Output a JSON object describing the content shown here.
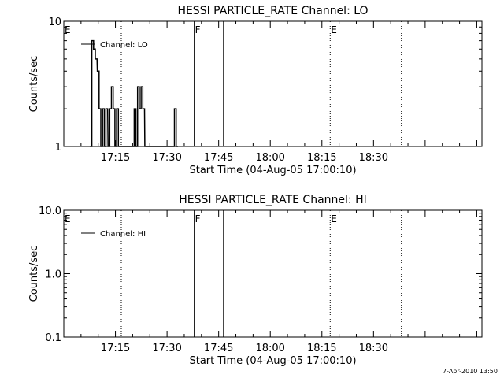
{
  "footer_text": "7-Apr-2010 13:50",
  "chart_data": [
    {
      "type": "line",
      "title": "HESSI PARTICLE_RATE Channel: LO",
      "xlabel": "Start Time (04-Aug-05 17:00:10)",
      "ylabel": "Counts/sec",
      "y_scale": "log",
      "ylim": [
        1,
        10
      ],
      "y_ticks": [
        {
          "value": 1,
          "label": "1"
        },
        {
          "value": 10,
          "label": "10"
        }
      ],
      "xlim_minutes": [
        0,
        121.5
      ],
      "x_ticks": [
        {
          "minutes": 15,
          "label": "17:15"
        },
        {
          "minutes": 30,
          "label": "17:30"
        },
        {
          "minutes": 45,
          "label": "17:45"
        },
        {
          "minutes": 60,
          "label": "18:00"
        },
        {
          "minutes": 75,
          "label": "18:15"
        },
        {
          "minutes": 90,
          "label": "18:30"
        }
      ],
      "legend": {
        "placement": "top-left",
        "label": "Channel: LO"
      },
      "markers": [
        {
          "minutes": 0,
          "style": "dotted",
          "label": "E"
        },
        {
          "minutes": 16.7,
          "style": "dotted",
          "label": ""
        },
        {
          "minutes": 37.9,
          "style": "solid",
          "label": "F"
        },
        {
          "minutes": 46.4,
          "style": "solid",
          "label": ""
        },
        {
          "minutes": 77.4,
          "style": "dotted",
          "label": "E"
        },
        {
          "minutes": 98.1,
          "style": "dotted",
          "label": ""
        }
      ],
      "series": [
        {
          "name": "Channel: LO",
          "x_minutes": [
            7.9,
            8.4,
            8.9,
            9.4,
            10.0,
            10.5,
            11.0,
            11.5,
            12.0,
            12.5,
            13.1,
            13.6,
            14.1,
            14.6,
            15.1,
            15.6,
            16.1,
            16.6,
            17.1,
            17.7,
            18.2,
            18.7,
            19.2,
            19.7,
            20.2,
            20.7,
            21.2,
            21.7,
            22.2,
            22.7,
            23.2,
            23.8,
            24.3,
            24.8,
            25.3,
            25.8,
            26.3,
            26.8,
            27.3,
            27.8,
            28.3,
            28.9,
            29.4,
            29.9,
            30.4,
            30.9,
            31.4,
            31.9,
            32.4,
            32.9
          ],
          "values": [
            1.0,
            7.0,
            6.0,
            5.0,
            4.0,
            2.0,
            1.0,
            2.0,
            1.0,
            2.0,
            1.0,
            2.0,
            3.0,
            2.0,
            1.0,
            2.0,
            1.0,
            1.0,
            1.0,
            1.0,
            1.0,
            1.0,
            1.0,
            1.0,
            1.0,
            2.0,
            1.0,
            3.0,
            2.0,
            3.0,
            2.0,
            1.0,
            1.0,
            1.0,
            1.0,
            1.0,
            1.0,
            1.0,
            1.0,
            1.0,
            1.0,
            1.0,
            1.0,
            1.0,
            1.0,
            1.0,
            1.0,
            1.0,
            2.0,
            1.0
          ]
        }
      ]
    },
    {
      "type": "line",
      "title": "HESSI PARTICLE_RATE Channel: HI",
      "xlabel": "Start Time (04-Aug-05 17:00:10)",
      "ylabel": "Counts/sec",
      "y_scale": "log",
      "ylim": [
        0.1,
        10
      ],
      "y_ticks": [
        {
          "value": 0.1,
          "label": "0.1"
        },
        {
          "value": 1,
          "label": "1.0"
        },
        {
          "value": 10,
          "label": "10.0"
        }
      ],
      "xlim_minutes": [
        0,
        121.5
      ],
      "x_ticks": [
        {
          "minutes": 15,
          "label": "17:15"
        },
        {
          "minutes": 30,
          "label": "17:30"
        },
        {
          "minutes": 45,
          "label": "17:45"
        },
        {
          "minutes": 60,
          "label": "18:00"
        },
        {
          "minutes": 75,
          "label": "18:15"
        },
        {
          "minutes": 90,
          "label": "18:30"
        }
      ],
      "legend": {
        "placement": "top-left",
        "label": "Channel: HI"
      },
      "markers": [
        {
          "minutes": 0,
          "style": "dotted",
          "label": "E"
        },
        {
          "minutes": 16.7,
          "style": "dotted",
          "label": ""
        },
        {
          "minutes": 37.9,
          "style": "solid",
          "label": "F"
        },
        {
          "minutes": 46.4,
          "style": "solid",
          "label": ""
        },
        {
          "minutes": 77.4,
          "style": "dotted",
          "label": "E"
        },
        {
          "minutes": 98.1,
          "style": "dotted",
          "label": ""
        }
      ],
      "series": [
        {
          "name": "Channel: HI",
          "x_minutes": [],
          "values": []
        }
      ]
    }
  ]
}
